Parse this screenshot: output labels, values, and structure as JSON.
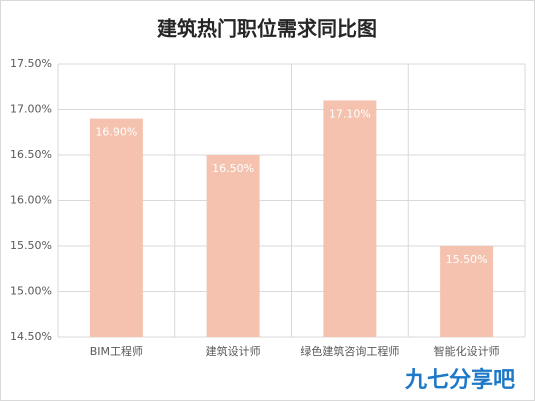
{
  "chart_data": {
    "type": "bar",
    "title": "建筑热门职位需求同比图",
    "categories": [
      "BIM工程师",
      "建筑设计师",
      "绿色建筑咨询工程师",
      "智能化设计师"
    ],
    "values": [
      16.9,
      16.5,
      17.1,
      15.5
    ],
    "value_labels": [
      "16.90%",
      "16.50%",
      "17.10%",
      "15.50%"
    ],
    "color": "#f4c2ae",
    "ylim": [
      14.5,
      17.5
    ],
    "yticks": [
      {
        "value": 14.5,
        "label": "14.50%"
      },
      {
        "value": 15,
        "label": "15.00%"
      },
      {
        "value": 15.5,
        "label": "15.50%"
      },
      {
        "value": 16,
        "label": "16.00%"
      },
      {
        "value": 16.5,
        "label": "16.50%"
      },
      {
        "value": 17,
        "label": "17.00%"
      },
      {
        "value": 17.5,
        "label": "17.50%"
      }
    ],
    "grid": true,
    "watermark": "九七分享吧"
  }
}
